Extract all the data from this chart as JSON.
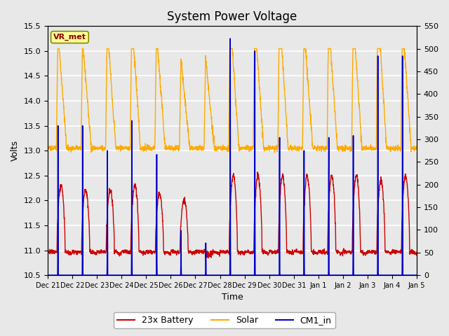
{
  "title": "System Power Voltage",
  "xlabel": "Time",
  "ylabel": "Volts",
  "ylim_left": [
    10.5,
    15.5
  ],
  "ylim_right": [
    0,
    550
  ],
  "yticks_left": [
    10.5,
    11.0,
    11.5,
    12.0,
    12.5,
    13.0,
    13.5,
    14.0,
    14.5,
    15.0,
    15.5
  ],
  "yticks_right": [
    0,
    50,
    100,
    150,
    200,
    250,
    300,
    350,
    400,
    450,
    500,
    550
  ],
  "color_battery": "#cc0000",
  "color_solar": "#ffaa00",
  "color_cm1": "#0000cc",
  "annotation_text": "VR_met",
  "annotation_box_facecolor": "#ffff99",
  "annotation_box_edgecolor": "#888800",
  "annotation_text_color": "#880000",
  "background_color": "#e8e8e8",
  "fig_facecolor": "#e8e8e8",
  "grid_color": "#ffffff",
  "title_fontsize": 12,
  "label_fontsize": 9,
  "tick_fontsize": 8,
  "legend_fontsize": 9,
  "linewidth_battery": 1.0,
  "linewidth_solar": 1.0,
  "linewidth_cm1": 1.2
}
